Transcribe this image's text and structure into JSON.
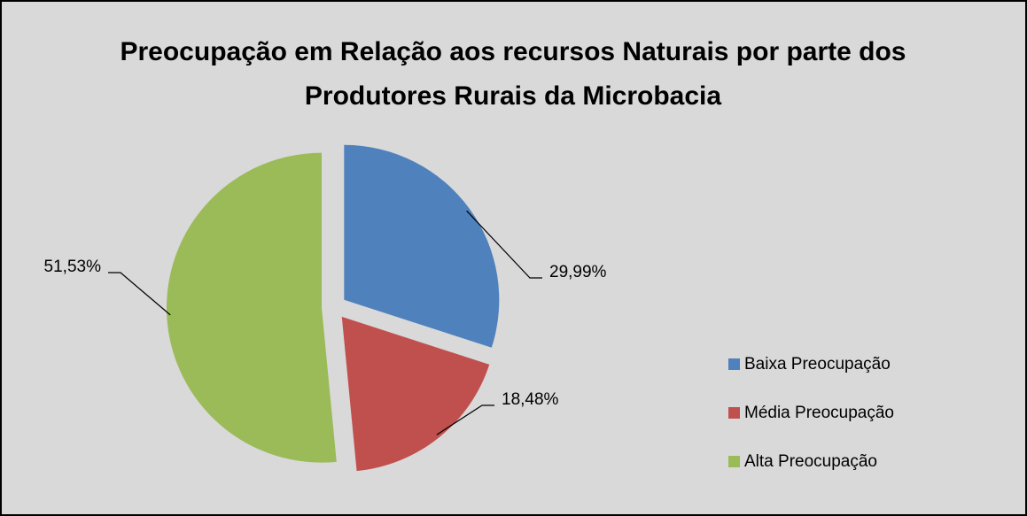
{
  "chart_data": {
    "type": "pie",
    "title": "Preocupação em Relação aos recursos Naturais por parte dos Produtores Rurais da Microbacia",
    "categories": [
      "Baixa Preocupação",
      "Média Preocupação",
      "Alta Preocupação"
    ],
    "values": [
      29.99,
      18.48,
      51.53
    ],
    "value_labels": [
      "29,99%",
      "18,48%",
      "51,53%"
    ],
    "colors": [
      "#4f81bd",
      "#c0504d",
      "#9bbb59"
    ],
    "legend": "right"
  }
}
